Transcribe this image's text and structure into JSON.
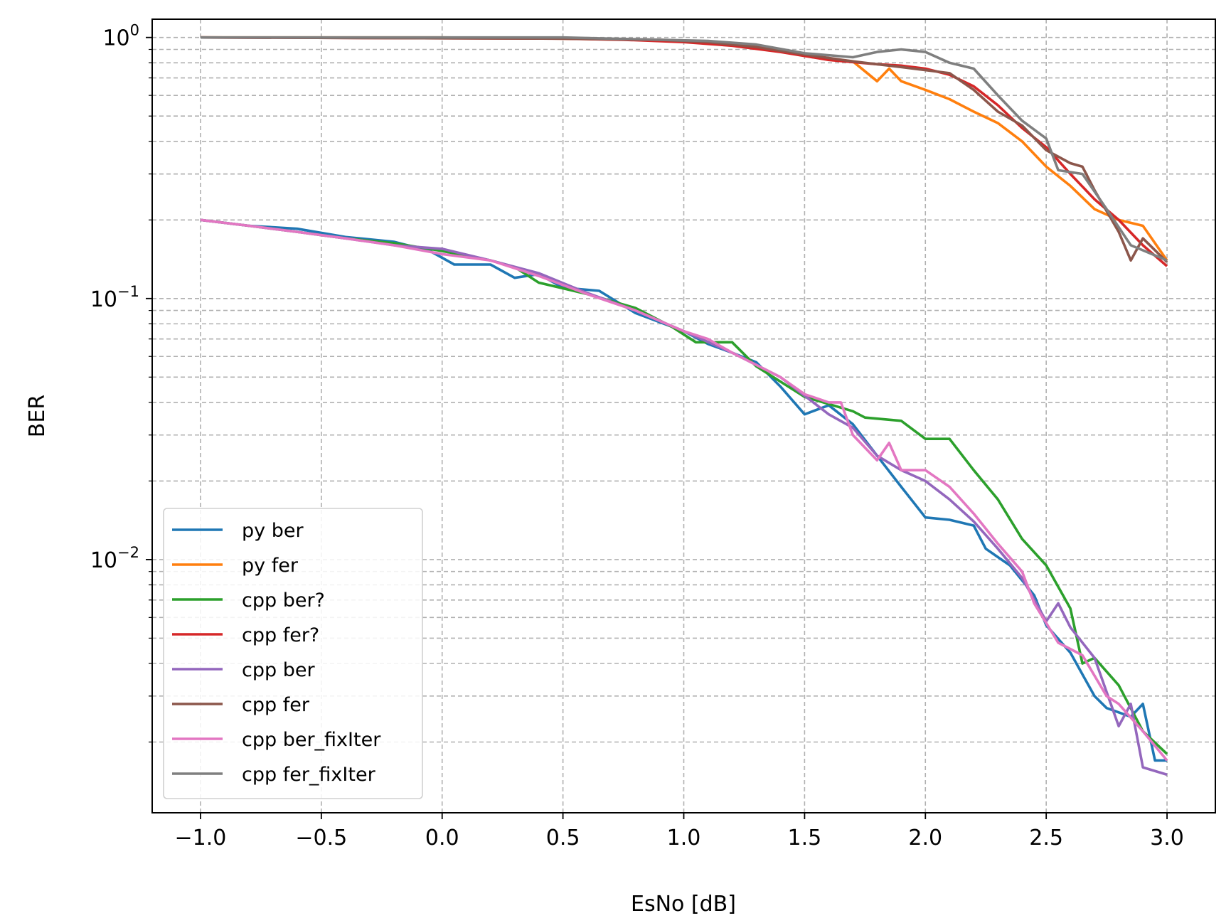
{
  "chart_data": {
    "type": "line",
    "title": "",
    "xlabel": "EsNo [dB]",
    "ylabel": "BER",
    "xlim": [
      -1.2,
      3.2
    ],
    "ylim_exp": [
      -2.97,
      0.07
    ],
    "yscale": "log",
    "grid": true,
    "legend_position": "lower-left",
    "x_ticks": [
      {
        "value": -1.0,
        "label": "−1.0"
      },
      {
        "value": -0.5,
        "label": "−0.5"
      },
      {
        "value": 0.0,
        "label": "0.0"
      },
      {
        "value": 0.5,
        "label": "0.5"
      },
      {
        "value": 1.0,
        "label": "1.0"
      },
      {
        "value": 1.5,
        "label": "1.5"
      },
      {
        "value": 2.0,
        "label": "2.0"
      },
      {
        "value": 2.5,
        "label": "2.5"
      },
      {
        "value": 3.0,
        "label": "3.0"
      }
    ],
    "y_ticks": [
      {
        "exp": 0,
        "base": "10",
        "sup": "0"
      },
      {
        "exp": -1,
        "base": "10",
        "sup": "−1"
      },
      {
        "exp": -2,
        "base": "10",
        "sup": "−2"
      }
    ],
    "series": [
      {
        "name": "py ber",
        "color": "#1f77b4",
        "points": [
          [
            -1.0,
            0.2
          ],
          [
            -0.8,
            0.19
          ],
          [
            -0.6,
            0.185
          ],
          [
            -0.4,
            0.172
          ],
          [
            -0.2,
            0.165
          ],
          [
            -0.05,
            0.152
          ],
          [
            0.05,
            0.135
          ],
          [
            0.2,
            0.135
          ],
          [
            0.3,
            0.12
          ],
          [
            0.4,
            0.124
          ],
          [
            0.5,
            0.11
          ],
          [
            0.65,
            0.107
          ],
          [
            0.8,
            0.088
          ],
          [
            1.0,
            0.075
          ],
          [
            1.1,
            0.067
          ],
          [
            1.2,
            0.062
          ],
          [
            1.3,
            0.057
          ],
          [
            1.4,
            0.046
          ],
          [
            1.5,
            0.036
          ],
          [
            1.6,
            0.039
          ],
          [
            1.7,
            0.033
          ],
          [
            1.8,
            0.025
          ],
          [
            1.9,
            0.019
          ],
          [
            2.0,
            0.0145
          ],
          [
            2.1,
            0.0142
          ],
          [
            2.2,
            0.0135
          ],
          [
            2.25,
            0.011
          ],
          [
            2.35,
            0.0095
          ],
          [
            2.45,
            0.0073
          ],
          [
            2.5,
            0.0056
          ],
          [
            2.6,
            0.0044
          ],
          [
            2.7,
            0.003
          ],
          [
            2.75,
            0.0027
          ],
          [
            2.85,
            0.0025
          ],
          [
            2.9,
            0.0028
          ],
          [
            2.95,
            0.0017
          ],
          [
            3.0,
            0.0017
          ]
        ]
      },
      {
        "name": "py fer",
        "color": "#ff7f0e",
        "points": [
          [
            -1.0,
            1.0
          ],
          [
            0.0,
            1.0
          ],
          [
            0.5,
            0.99
          ],
          [
            0.8,
            0.98
          ],
          [
            1.0,
            0.97
          ],
          [
            1.2,
            0.94
          ],
          [
            1.4,
            0.9
          ],
          [
            1.5,
            0.85
          ],
          [
            1.7,
            0.81
          ],
          [
            1.8,
            0.68
          ],
          [
            1.85,
            0.76
          ],
          [
            1.9,
            0.68
          ],
          [
            2.0,
            0.63
          ],
          [
            2.1,
            0.58
          ],
          [
            2.2,
            0.52
          ],
          [
            2.3,
            0.47
          ],
          [
            2.4,
            0.4
          ],
          [
            2.5,
            0.32
          ],
          [
            2.6,
            0.27
          ],
          [
            2.7,
            0.22
          ],
          [
            2.8,
            0.2
          ],
          [
            2.9,
            0.19
          ],
          [
            3.0,
            0.14
          ]
        ]
      },
      {
        "name": "cpp ber?",
        "color": "#2ca02c",
        "points": [
          [
            -1.0,
            0.2
          ],
          [
            -0.8,
            0.19
          ],
          [
            -0.6,
            0.18
          ],
          [
            -0.4,
            0.17
          ],
          [
            -0.2,
            0.163
          ],
          [
            0.0,
            0.152
          ],
          [
            0.2,
            0.14
          ],
          [
            0.3,
            0.132
          ],
          [
            0.4,
            0.115
          ],
          [
            0.6,
            0.104
          ],
          [
            0.8,
            0.092
          ],
          [
            0.95,
            0.078
          ],
          [
            1.05,
            0.068
          ],
          [
            1.2,
            0.068
          ],
          [
            1.3,
            0.055
          ],
          [
            1.5,
            0.042
          ],
          [
            1.7,
            0.037
          ],
          [
            1.75,
            0.035
          ],
          [
            1.9,
            0.034
          ],
          [
            2.0,
            0.029
          ],
          [
            2.1,
            0.029
          ],
          [
            2.2,
            0.022
          ],
          [
            2.3,
            0.017
          ],
          [
            2.4,
            0.012
          ],
          [
            2.5,
            0.0095
          ],
          [
            2.6,
            0.0065
          ],
          [
            2.65,
            0.004
          ],
          [
            2.7,
            0.0042
          ],
          [
            2.8,
            0.0033
          ],
          [
            2.9,
            0.0022
          ],
          [
            3.0,
            0.0018
          ]
        ]
      },
      {
        "name": "cpp fer?",
        "color": "#d62728",
        "points": [
          [
            -1.0,
            1.0
          ],
          [
            0.5,
            0.99
          ],
          [
            0.75,
            0.98
          ],
          [
            1.0,
            0.96
          ],
          [
            1.2,
            0.93
          ],
          [
            1.4,
            0.88
          ],
          [
            1.6,
            0.82
          ],
          [
            1.8,
            0.79
          ],
          [
            1.9,
            0.78
          ],
          [
            2.0,
            0.76
          ],
          [
            2.1,
            0.72
          ],
          [
            2.2,
            0.65
          ],
          [
            2.3,
            0.55
          ],
          [
            2.4,
            0.45
          ],
          [
            2.5,
            0.38
          ],
          [
            2.6,
            0.3
          ],
          [
            2.7,
            0.24
          ],
          [
            2.8,
            0.2
          ],
          [
            2.9,
            0.16
          ],
          [
            3.0,
            0.133
          ]
        ]
      },
      {
        "name": "cpp ber",
        "color": "#9467bd",
        "points": [
          [
            -1.0,
            0.2
          ],
          [
            -0.8,
            0.19
          ],
          [
            -0.6,
            0.18
          ],
          [
            -0.4,
            0.17
          ],
          [
            -0.2,
            0.16
          ],
          [
            0.0,
            0.155
          ],
          [
            0.2,
            0.14
          ],
          [
            0.4,
            0.125
          ],
          [
            0.6,
            0.105
          ],
          [
            0.8,
            0.09
          ],
          [
            1.0,
            0.075
          ],
          [
            1.2,
            0.062
          ],
          [
            1.4,
            0.05
          ],
          [
            1.6,
            0.036
          ],
          [
            1.7,
            0.032
          ],
          [
            1.8,
            0.025
          ],
          [
            1.9,
            0.022
          ],
          [
            2.0,
            0.02
          ],
          [
            2.1,
            0.017
          ],
          [
            2.2,
            0.014
          ],
          [
            2.3,
            0.011
          ],
          [
            2.4,
            0.0085
          ],
          [
            2.5,
            0.0058
          ],
          [
            2.55,
            0.0068
          ],
          [
            2.6,
            0.0055
          ],
          [
            2.7,
            0.0042
          ],
          [
            2.8,
            0.0023
          ],
          [
            2.85,
            0.0028
          ],
          [
            2.9,
            0.0016
          ],
          [
            3.0,
            0.0015
          ]
        ]
      },
      {
        "name": "cpp fer",
        "color": "#8c564b",
        "points": [
          [
            -1.0,
            1.0
          ],
          [
            0.5,
            0.99
          ],
          [
            0.9,
            0.98
          ],
          [
            1.1,
            0.96
          ],
          [
            1.3,
            0.92
          ],
          [
            1.5,
            0.86
          ],
          [
            1.7,
            0.81
          ],
          [
            1.9,
            0.77
          ],
          [
            2.1,
            0.73
          ],
          [
            2.2,
            0.63
          ],
          [
            2.3,
            0.52
          ],
          [
            2.4,
            0.46
          ],
          [
            2.5,
            0.37
          ],
          [
            2.6,
            0.33
          ],
          [
            2.65,
            0.32
          ],
          [
            2.7,
            0.26
          ],
          [
            2.8,
            0.18
          ],
          [
            2.85,
            0.14
          ],
          [
            2.9,
            0.17
          ],
          [
            3.0,
            0.138
          ]
        ]
      },
      {
        "name": "cpp ber_fixIter",
        "color": "#e377c2",
        "points": [
          [
            -1.0,
            0.2
          ],
          [
            -0.8,
            0.19
          ],
          [
            -0.6,
            0.18
          ],
          [
            -0.4,
            0.17
          ],
          [
            -0.2,
            0.16
          ],
          [
            0.0,
            0.148
          ],
          [
            0.2,
            0.14
          ],
          [
            0.4,
            0.122
          ],
          [
            0.6,
            0.104
          ],
          [
            0.8,
            0.09
          ],
          [
            1.0,
            0.075
          ],
          [
            1.1,
            0.07
          ],
          [
            1.2,
            0.062
          ],
          [
            1.4,
            0.05
          ],
          [
            1.5,
            0.043
          ],
          [
            1.6,
            0.04
          ],
          [
            1.65,
            0.04
          ],
          [
            1.7,
            0.03
          ],
          [
            1.8,
            0.024
          ],
          [
            1.85,
            0.028
          ],
          [
            1.9,
            0.022
          ],
          [
            2.0,
            0.022
          ],
          [
            2.1,
            0.019
          ],
          [
            2.2,
            0.015
          ],
          [
            2.3,
            0.0115
          ],
          [
            2.4,
            0.009
          ],
          [
            2.45,
            0.0068
          ],
          [
            2.55,
            0.0048
          ],
          [
            2.65,
            0.0043
          ],
          [
            2.75,
            0.003
          ],
          [
            2.8,
            0.0028
          ],
          [
            2.9,
            0.0022
          ],
          [
            3.0,
            0.0017
          ]
        ]
      },
      {
        "name": "cpp fer_fixIter",
        "color": "#7f7f7f",
        "points": [
          [
            -1.0,
            1.0
          ],
          [
            0.5,
            1.0
          ],
          [
            0.9,
            0.98
          ],
          [
            1.1,
            0.97
          ],
          [
            1.3,
            0.94
          ],
          [
            1.5,
            0.87
          ],
          [
            1.7,
            0.84
          ],
          [
            1.8,
            0.88
          ],
          [
            1.9,
            0.9
          ],
          [
            2.0,
            0.88
          ],
          [
            2.1,
            0.8
          ],
          [
            2.2,
            0.76
          ],
          [
            2.3,
            0.6
          ],
          [
            2.4,
            0.48
          ],
          [
            2.5,
            0.41
          ],
          [
            2.55,
            0.31
          ],
          [
            2.65,
            0.3
          ],
          [
            2.75,
            0.22
          ],
          [
            2.85,
            0.16
          ],
          [
            3.0,
            0.14
          ]
        ]
      }
    ]
  }
}
